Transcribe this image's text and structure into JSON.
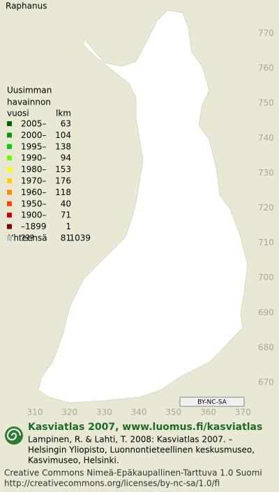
{
  "title": "Raphanus",
  "legend": {
    "heading": [
      "Uusimman",
      "havainnon",
      "vuosi"
    ],
    "count_heading": "lkm",
    "items": [
      {
        "label": "2005–",
        "count": 63,
        "color": "#006400"
      },
      {
        "label": "2000–",
        "count": 104,
        "color": "#009a00"
      },
      {
        "label": "1995–",
        "count": 138,
        "color": "#00cc00"
      },
      {
        "label": "1990–",
        "count": 94,
        "color": "#66ff00"
      },
      {
        "label": "1980–",
        "count": 153,
        "color": "#ffff00"
      },
      {
        "label": "1970–",
        "count": 176,
        "color": "#ffcc00"
      },
      {
        "label": "1960–",
        "count": 118,
        "color": "#ff8800"
      },
      {
        "label": "1950–",
        "count": 40,
        "color": "#ff4400"
      },
      {
        "label": "1900–",
        "count": 71,
        "color": "#cc0000"
      },
      {
        "label": "–1899",
        "count": 1,
        "color": "#800000"
      },
      {
        "label": "???",
        "count": 81,
        "color": "#c0c0c0"
      }
    ],
    "total_label": "Yhteensä",
    "total": 1039
  },
  "map": {
    "northing_labels": [
      770,
      760,
      750,
      740,
      730,
      720,
      710,
      700,
      690,
      680,
      670
    ],
    "easting_labels": [
      310,
      320,
      330,
      340,
      350,
      360,
      370
    ]
  },
  "license_badge": "BY-NC-SA",
  "footer": {
    "brand": "Kasviatlas 2007, www.luomus.fi/kasviatlas",
    "citation": [
      "Lampinen, R. & Lahti, T. 2008: Kasviatlas 2007. –",
      "Helsingin Yliopisto, Luonnontieteellinen keskusmuseo,",
      "Kasvimuseo, Helsinki."
    ],
    "license": [
      "Creative Commons Nimeä-Epäkaupallinen-Tarttuva 1.0 Suomi",
      "http://creativecommons.org/licenses/by-nc-sa/1.0/fi"
    ]
  }
}
